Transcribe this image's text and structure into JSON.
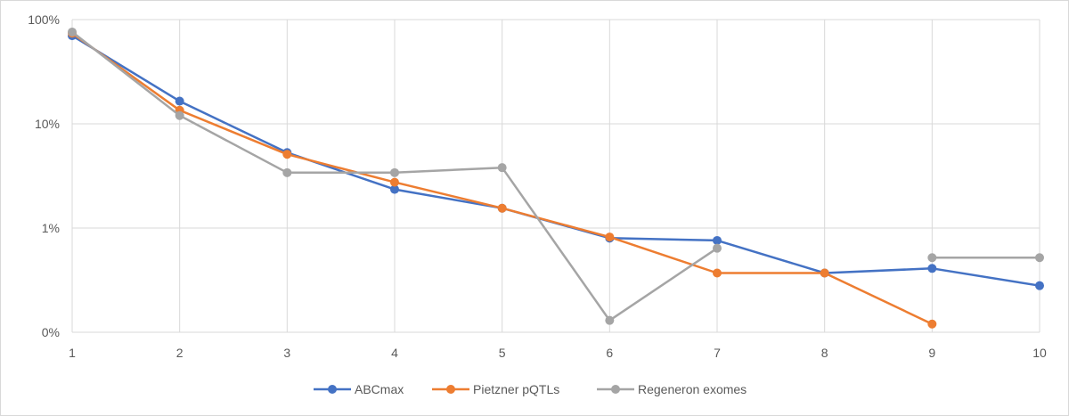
{
  "chart_data": {
    "type": "line",
    "title": "",
    "xlabel": "",
    "ylabel": "",
    "x": [
      1,
      2,
      3,
      4,
      5,
      6,
      7,
      8,
      9,
      10
    ],
    "y_scale": "log",
    "ylim": [
      0.001,
      1
    ],
    "y_ticks": [
      0.001,
      0.01,
      0.1,
      1
    ],
    "y_tick_labels": [
      "0%",
      "1%",
      "10%",
      "100%"
    ],
    "x_tick_labels": [
      "1",
      "2",
      "3",
      "4",
      "5",
      "6",
      "7",
      "8",
      "9",
      "10"
    ],
    "grid": true,
    "legend_position": "bottom",
    "series": [
      {
        "name": "ABCmax",
        "color": "#4472c4",
        "values": [
          0.7,
          0.165,
          0.053,
          0.0235,
          0.0155,
          0.008,
          0.0076,
          0.0037,
          0.0041,
          0.0028
        ]
      },
      {
        "name": "Pietzner pQTLs",
        "color": "#ed7d31",
        "values": [
          0.74,
          0.135,
          0.051,
          0.0275,
          0.0155,
          0.0082,
          0.0037,
          0.0037,
          0.0012,
          null
        ]
      },
      {
        "name": "Regeneron exomes",
        "color": "#a5a5a5",
        "values": [
          0.76,
          0.12,
          0.034,
          0.034,
          0.038,
          0.0013,
          0.0064,
          null,
          0.0052,
          0.0052
        ]
      }
    ]
  }
}
